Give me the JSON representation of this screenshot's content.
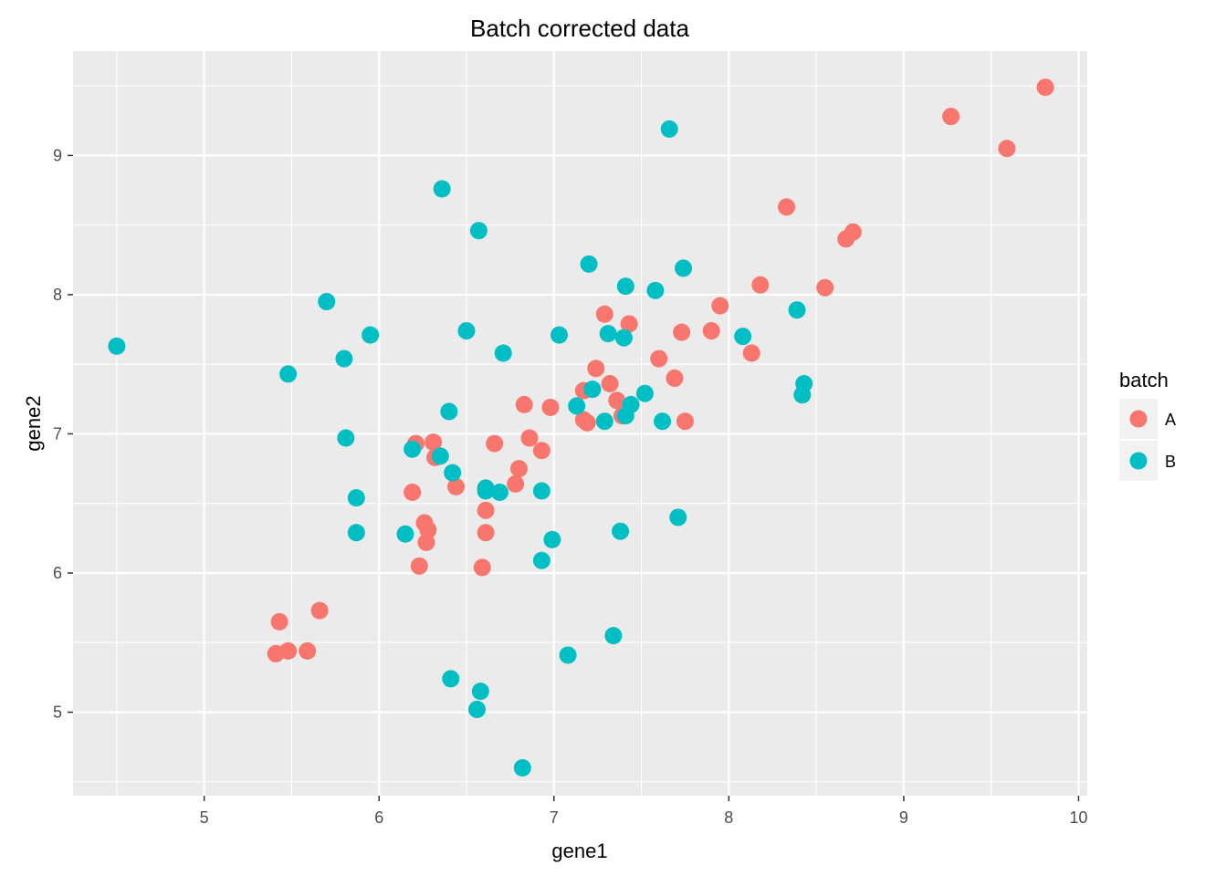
{
  "chart_data": {
    "type": "scatter",
    "title": "Batch corrected data",
    "xlabel": "gene1",
    "ylabel": "gene2",
    "xlim": [
      4.25,
      10.05
    ],
    "ylim": [
      4.4,
      9.75
    ],
    "xticks": [
      5,
      6,
      7,
      8,
      9,
      10
    ],
    "yticks": [
      5,
      6,
      7,
      8,
      9
    ],
    "grid": true,
    "legend": {
      "title": "batch",
      "position": "right"
    },
    "series": [
      {
        "name": "A",
        "color": "#F8766D",
        "points": [
          [
            9.81,
            9.49
          ],
          [
            9.27,
            9.28
          ],
          [
            9.59,
            9.05
          ],
          [
            8.33,
            8.63
          ],
          [
            8.71,
            8.45
          ],
          [
            8.67,
            8.4
          ],
          [
            8.55,
            8.05
          ],
          [
            8.18,
            8.07
          ],
          [
            7.95,
            7.92
          ],
          [
            7.9,
            7.74
          ],
          [
            7.73,
            7.73
          ],
          [
            8.13,
            7.58
          ],
          [
            7.29,
            7.86
          ],
          [
            7.43,
            7.79
          ],
          [
            7.6,
            7.54
          ],
          [
            7.24,
            7.47
          ],
          [
            7.69,
            7.4
          ],
          [
            7.32,
            7.36
          ],
          [
            7.17,
            7.31
          ],
          [
            7.36,
            7.24
          ],
          [
            6.83,
            7.21
          ],
          [
            6.98,
            7.19
          ],
          [
            7.39,
            7.13
          ],
          [
            7.17,
            7.1
          ],
          [
            7.19,
            7.08
          ],
          [
            7.75,
            7.09
          ],
          [
            6.86,
            6.97
          ],
          [
            6.66,
            6.93
          ],
          [
            6.93,
            6.88
          ],
          [
            6.21,
            6.93
          ],
          [
            6.31,
            6.94
          ],
          [
            6.32,
            6.83
          ],
          [
            6.8,
            6.75
          ],
          [
            6.78,
            6.64
          ],
          [
            6.44,
            6.62
          ],
          [
            6.19,
            6.58
          ],
          [
            6.61,
            6.45
          ],
          [
            6.26,
            6.36
          ],
          [
            6.28,
            6.31
          ],
          [
            6.61,
            6.29
          ],
          [
            6.27,
            6.22
          ],
          [
            6.23,
            6.05
          ],
          [
            6.59,
            6.04
          ],
          [
            5.66,
            5.73
          ],
          [
            5.43,
            5.65
          ],
          [
            5.41,
            5.42
          ],
          [
            5.48,
            5.44
          ],
          [
            5.59,
            5.44
          ]
        ]
      },
      {
        "name": "B",
        "color": "#00BFC4",
        "points": [
          [
            7.66,
            9.19
          ],
          [
            6.36,
            8.76
          ],
          [
            6.57,
            8.46
          ],
          [
            7.2,
            8.22
          ],
          [
            7.74,
            8.19
          ],
          [
            7.41,
            8.06
          ],
          [
            7.58,
            8.03
          ],
          [
            5.7,
            7.95
          ],
          [
            8.39,
            7.89
          ],
          [
            6.5,
            7.74
          ],
          [
            7.31,
            7.72
          ],
          [
            7.03,
            7.71
          ],
          [
            5.95,
            7.71
          ],
          [
            7.4,
            7.69
          ],
          [
            8.08,
            7.7
          ],
          [
            4.5,
            7.63
          ],
          [
            6.71,
            7.58
          ],
          [
            5.8,
            7.54
          ],
          [
            5.48,
            7.43
          ],
          [
            8.43,
            7.36
          ],
          [
            8.42,
            7.28
          ],
          [
            7.52,
            7.29
          ],
          [
            7.22,
            7.32
          ],
          [
            7.13,
            7.2
          ],
          [
            7.44,
            7.21
          ],
          [
            6.4,
            7.16
          ],
          [
            7.41,
            7.13
          ],
          [
            7.29,
            7.09
          ],
          [
            7.62,
            7.09
          ],
          [
            5.81,
            6.97
          ],
          [
            6.19,
            6.89
          ],
          [
            6.35,
            6.84
          ],
          [
            6.42,
            6.72
          ],
          [
            6.61,
            6.61
          ],
          [
            6.69,
            6.58
          ],
          [
            6.93,
            6.59
          ],
          [
            5.87,
            6.54
          ],
          [
            6.61,
            6.59
          ],
          [
            7.71,
            6.4
          ],
          [
            7.38,
            6.3
          ],
          [
            5.87,
            6.29
          ],
          [
            6.15,
            6.28
          ],
          [
            6.99,
            6.24
          ],
          [
            6.93,
            6.09
          ],
          [
            7.34,
            5.55
          ],
          [
            7.08,
            5.41
          ],
          [
            6.41,
            5.24
          ],
          [
            6.58,
            5.15
          ],
          [
            6.56,
            5.02
          ],
          [
            6.82,
            4.6
          ]
        ]
      }
    ]
  }
}
